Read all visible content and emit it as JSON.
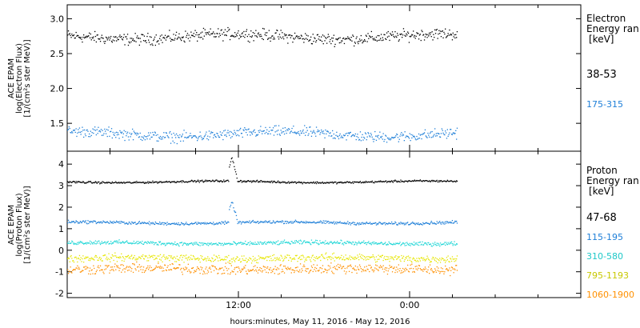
{
  "figure": {
    "xlabel": "hours:minutes, May 11, 2016 - May 12, 2016",
    "x_ticks": [
      {
        "label": "12:00",
        "hour": 12
      },
      {
        "label": "0:00",
        "hour": 24
      }
    ],
    "minor_tick_hours": [
      3,
      6,
      9,
      15,
      18,
      21,
      27,
      30,
      33
    ],
    "x_range_hours": [
      0,
      36
    ],
    "data_end_hour": 27.3
  },
  "chart_data": [
    {
      "type": "scatter",
      "ylabel_lines": [
        "ACE EPAM",
        "log(Electron Flux)",
        "[1/(cm²s ster MeV)]"
      ],
      "ylim": [
        1.1,
        3.2
      ],
      "y_ticks": [
        1.5,
        2.0,
        2.5,
        3.0
      ],
      "y_tick_labels": [
        "1.5",
        "2.0",
        "2.5",
        "3.0"
      ],
      "legend_title_lines": [
        "Electron",
        "Energy ran",
        "[keV]"
      ],
      "series": [
        {
          "name": "38-53",
          "color": "#000000",
          "mean": 2.75,
          "spread": 0.07,
          "label_color": "#000000"
        },
        {
          "name": "175-315",
          "color": "#1e7fd8",
          "mean": 1.35,
          "spread": 0.065,
          "label_color": "#1e7fd8"
        }
      ]
    },
    {
      "type": "scatter",
      "ylabel_lines": [
        "ACE EPAM",
        "log(Proton Flux)",
        "[1/(cm²s ster MeV)]"
      ],
      "ylim": [
        -2.2,
        4.6
      ],
      "y_ticks": [
        -2,
        -1,
        0,
        1,
        2,
        3,
        4
      ],
      "y_tick_labels": [
        "-2",
        "-1",
        "0",
        "1",
        "2",
        "3",
        "4"
      ],
      "legend_title_lines": [
        "Proton",
        "Energy ran",
        "[keV]"
      ],
      "series": [
        {
          "name": "47-68",
          "color": "#000000",
          "mean": 3.2,
          "spread": 0.04,
          "label_color": "#000000"
        },
        {
          "name": "115-195",
          "color": "#1e7fd8",
          "mean": 1.3,
          "spread": 0.06,
          "label_color": "#1e7fd8"
        },
        {
          "name": "310-580",
          "color": "#1fd6d6",
          "mean": 0.35,
          "spread": 0.08,
          "label_color": "#1fc8c8"
        },
        {
          "name": "795-1193",
          "color": "#e6e600",
          "mean": -0.35,
          "spread": 0.15,
          "label_color": "#c8c800"
        },
        {
          "name": "1060-1900",
          "color": "#ff9000",
          "mean": -0.85,
          "spread": 0.2,
          "label_color": "#ff9000"
        }
      ],
      "spike": {
        "hour_start": 11.3,
        "hour_end": 11.9,
        "series": [
          "47-68",
          "115-195"
        ],
        "peak_offset": [
          1.1,
          1.0
        ]
      }
    }
  ]
}
